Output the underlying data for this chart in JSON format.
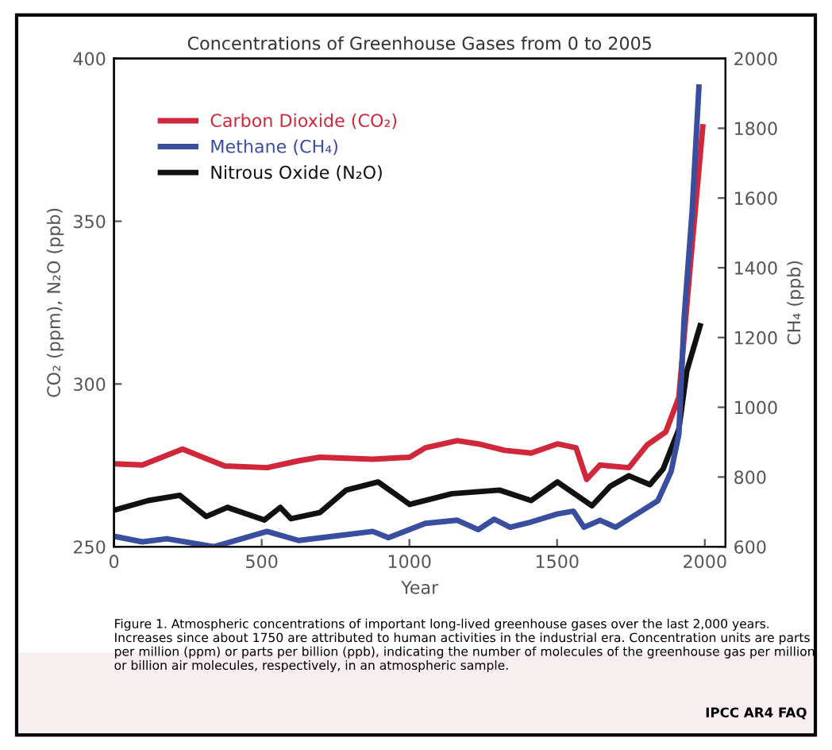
{
  "chart_data": {
    "type": "line",
    "title": "Concentrations of Greenhouse Gases from 0 to 2005",
    "xlabel": "Year",
    "ylabel": "CO₂ (ppm), N₂O (ppb)",
    "y2label": "CH₄ (ppb)",
    "series": [
      {
        "name": "Carbon Dioxide (CO₂)",
        "color": "#d0283a",
        "x": [
          0,
          96,
          232,
          375,
          518,
          625,
          697,
          876,
          1001,
          1054,
          1162,
          1233,
          1323,
          1412,
          1501,
          1564,
          1600,
          1645,
          1743,
          1805,
          1868,
          1912,
          1951,
          1993
        ],
        "values": [
          275.5,
          275.1,
          280.0,
          274.8,
          274.3,
          276.4,
          277.5,
          276.9,
          277.5,
          280.4,
          282.6,
          281.6,
          279.6,
          278.8,
          281.6,
          280.4,
          270.7,
          275.1,
          274.3,
          281.3,
          285.3,
          295.9,
          336.6,
          379
        ]
      },
      {
        "name": "Methane (CH₄)",
        "color": "#3a4ea0",
        "axis": "y2",
        "x": [
          0,
          96,
          179,
          339,
          518,
          625,
          769,
          876,
          929,
          1054,
          1162,
          1233,
          1287,
          1341,
          1412,
          1501,
          1555,
          1591,
          1645,
          1698,
          1770,
          1841,
          1886,
          1912,
          1930,
          1957,
          1980
        ],
        "values": [
          630,
          614,
          623,
          600,
          644,
          618,
          633,
          644,
          626,
          667,
          676,
          649,
          679,
          656,
          671,
          694,
          702,
          656,
          676,
          656,
          694,
          732,
          816,
          922,
          1257,
          1562,
          1918
        ]
      },
      {
        "name": "Nitrous Oxide (N₂O)",
        "color": "#111111",
        "x": [
          0,
          116,
          223,
          312,
          384,
          509,
          563,
          599,
          697,
          786,
          894,
          1001,
          1144,
          1305,
          1412,
          1501,
          1618,
          1680,
          1743,
          1814,
          1859,
          1912,
          1939,
          1984
        ],
        "values": [
          261.2,
          264.2,
          265.8,
          259.3,
          262.1,
          258.2,
          262.1,
          258.6,
          260.5,
          267.4,
          269.9,
          263.0,
          266.3,
          267.4,
          264.2,
          269.9,
          262.6,
          268.6,
          271.8,
          269.1,
          273.9,
          286.1,
          304,
          317.9
        ]
      }
    ],
    "xlim": [
      0,
      2070
    ],
    "xticks": [
      0,
      500,
      1000,
      1500,
      2000
    ],
    "ylim": [
      250,
      400
    ],
    "yticks": [
      250,
      300,
      350,
      400
    ],
    "y2lim": [
      600,
      2000
    ],
    "y2ticks": [
      600,
      800,
      1000,
      1200,
      1400,
      1600,
      1800,
      2000
    ],
    "legend": "top left",
    "grid": false,
    "marker": "none",
    "line_style": "solid",
    "annotations": [
      "Figure 1. Atmospheric concentrations of important long-lived greenhouse gases over the last 2,000 years. Increases since about 1750 are attributed to human activities in the industrial era. Concentration units are parts per million (ppm) or parts per billion (ppb), indicating the number of molecules of the greenhouse gas per million or billion air molecules, respectively, in an atmospheric sample.",
      "IPCC AR4 FAQ"
    ]
  }
}
